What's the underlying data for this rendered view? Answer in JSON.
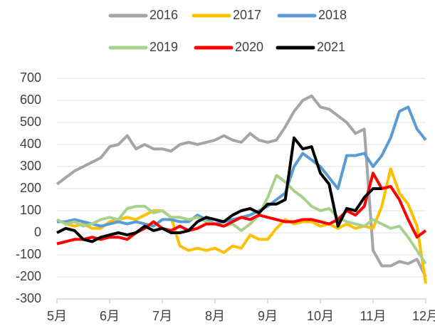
{
  "chart_data": {
    "type": "line",
    "categories": [
      "5月",
      null,
      null,
      null,
      null,
      null,
      "6月",
      null,
      null,
      null,
      null,
      null,
      "7月",
      null,
      null,
      null,
      null,
      null,
      "8月",
      null,
      null,
      null,
      null,
      null,
      "9月",
      null,
      null,
      null,
      null,
      null,
      "10月",
      null,
      null,
      null,
      null,
      null,
      "11月",
      null,
      null,
      null,
      null,
      null,
      "12月"
    ],
    "series": [
      {
        "name": "2016",
        "color": "#a5a5a5",
        "values": [
          220,
          250,
          280,
          300,
          320,
          340,
          390,
          400,
          440,
          380,
          400,
          380,
          380,
          370,
          400,
          410,
          400,
          410,
          420,
          440,
          420,
          410,
          450,
          420,
          410,
          420,
          480,
          550,
          600,
          620,
          570,
          560,
          530,
          500,
          450,
          470,
          -80,
          -150,
          -150,
          -130,
          -140,
          -120,
          -200
        ]
      },
      {
        "name": "2017",
        "color": "#ffc000",
        "values": [
          60,
          40,
          30,
          40,
          20,
          20,
          50,
          60,
          70,
          60,
          80,
          100,
          100,
          70,
          -60,
          -80,
          -70,
          -80,
          -70,
          -90,
          -60,
          -70,
          -10,
          -30,
          -30,
          20,
          60,
          40,
          50,
          50,
          30,
          40,
          20,
          40,
          20,
          30,
          20,
          120,
          290,
          180,
          130,
          30,
          -230
        ]
      },
      {
        "name": "2018",
        "color": "#5b9bd5",
        "values": [
          50,
          50,
          60,
          50,
          40,
          30,
          40,
          50,
          40,
          50,
          40,
          30,
          60,
          60,
          50,
          50,
          80,
          60,
          40,
          50,
          60,
          70,
          80,
          100,
          120,
          150,
          180,
          300,
          360,
          330,
          300,
          250,
          200,
          350,
          350,
          360,
          300,
          350,
          430,
          550,
          570,
          470,
          420
        ]
      },
      {
        "name": "2019",
        "color": "#a9d18e",
        "values": [
          60,
          40,
          50,
          30,
          40,
          60,
          70,
          60,
          110,
          120,
          120,
          90,
          100,
          70,
          70,
          60,
          70,
          50,
          40,
          30,
          40,
          10,
          40,
          80,
          160,
          260,
          230,
          190,
          160,
          120,
          100,
          110,
          70,
          50,
          40,
          30,
          60,
          40,
          20,
          30,
          -20,
          -80,
          -140
        ]
      },
      {
        "name": "2020",
        "color": "#ff0000",
        "values": [
          -50,
          -40,
          -30,
          -30,
          -20,
          -30,
          -20,
          -20,
          -30,
          0,
          20,
          50,
          20,
          10,
          30,
          10,
          20,
          40,
          40,
          30,
          50,
          70,
          60,
          80,
          70,
          60,
          50,
          50,
          60,
          60,
          50,
          40,
          60,
          100,
          80,
          120,
          270,
          200,
          210,
          150,
          60,
          -20,
          10
        ]
      },
      {
        "name": "2021",
        "color": "#000000",
        "values": [
          0,
          20,
          10,
          -30,
          -40,
          -20,
          -10,
          0,
          -10,
          0,
          30,
          10,
          20,
          0,
          0,
          10,
          50,
          70,
          60,
          50,
          80,
          100,
          110,
          90,
          130,
          130,
          150,
          430,
          380,
          390,
          270,
          220,
          30,
          110,
          100,
          160,
          200,
          200,
          null,
          null,
          null,
          null,
          null
        ]
      }
    ],
    "ylim": [
      -300,
      700
    ],
    "yticks": [
      -300,
      -200,
      -100,
      0,
      100,
      200,
      300,
      400,
      500,
      600,
      700
    ],
    "grid": true
  }
}
